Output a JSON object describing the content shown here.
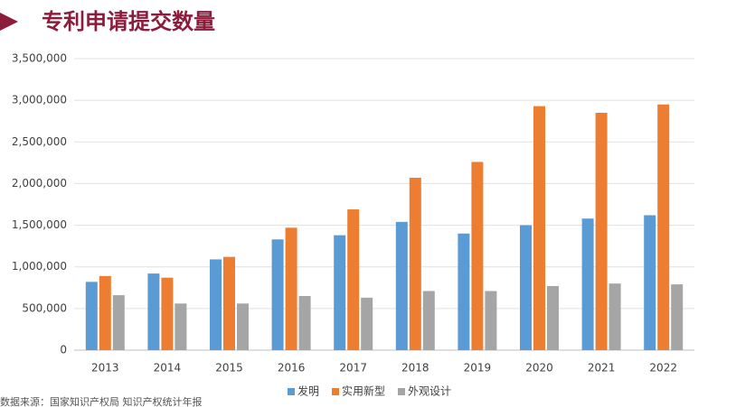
{
  "chart_data": {
    "type": "bar",
    "title": "专利申请提交数量",
    "source": "数据来源：国家知识产权局 知识产权统计年报",
    "categories": [
      "2013",
      "2014",
      "2015",
      "2016",
      "2017",
      "2018",
      "2019",
      "2020",
      "2021",
      "2022"
    ],
    "series": [
      {
        "name": "发明",
        "color": "#5b9bd5",
        "values": [
          820000,
          920000,
          1090000,
          1330000,
          1380000,
          1540000,
          1400000,
          1500000,
          1580000,
          1620000
        ]
      },
      {
        "name": "实用新型",
        "color": "#ed7d31",
        "values": [
          890000,
          870000,
          1120000,
          1470000,
          1690000,
          2070000,
          2260000,
          2930000,
          2850000,
          2950000
        ]
      },
      {
        "name": "外观设计",
        "color": "#a5a5a5",
        "values": [
          660000,
          560000,
          560000,
          650000,
          630000,
          710000,
          710000,
          770000,
          800000,
          790000
        ]
      }
    ],
    "ylim": [
      0,
      3500000
    ],
    "yticks": [
      0,
      {
        "value": 500000,
        "label": "500,000"
      },
      {
        "value": 1000000,
        "label": "1,000,000"
      },
      {
        "value": 1500000,
        "label": "1,500,000"
      },
      {
        "value": 2000000,
        "label": "2,000,000"
      },
      {
        "value": 2500000,
        "label": "2,500,000"
      },
      {
        "value": 3000000,
        "label": "3,000,000"
      },
      {
        "value": 3500000,
        "label": "3,500,000"
      }
    ],
    "grid": true,
    "legend": "bottom"
  }
}
